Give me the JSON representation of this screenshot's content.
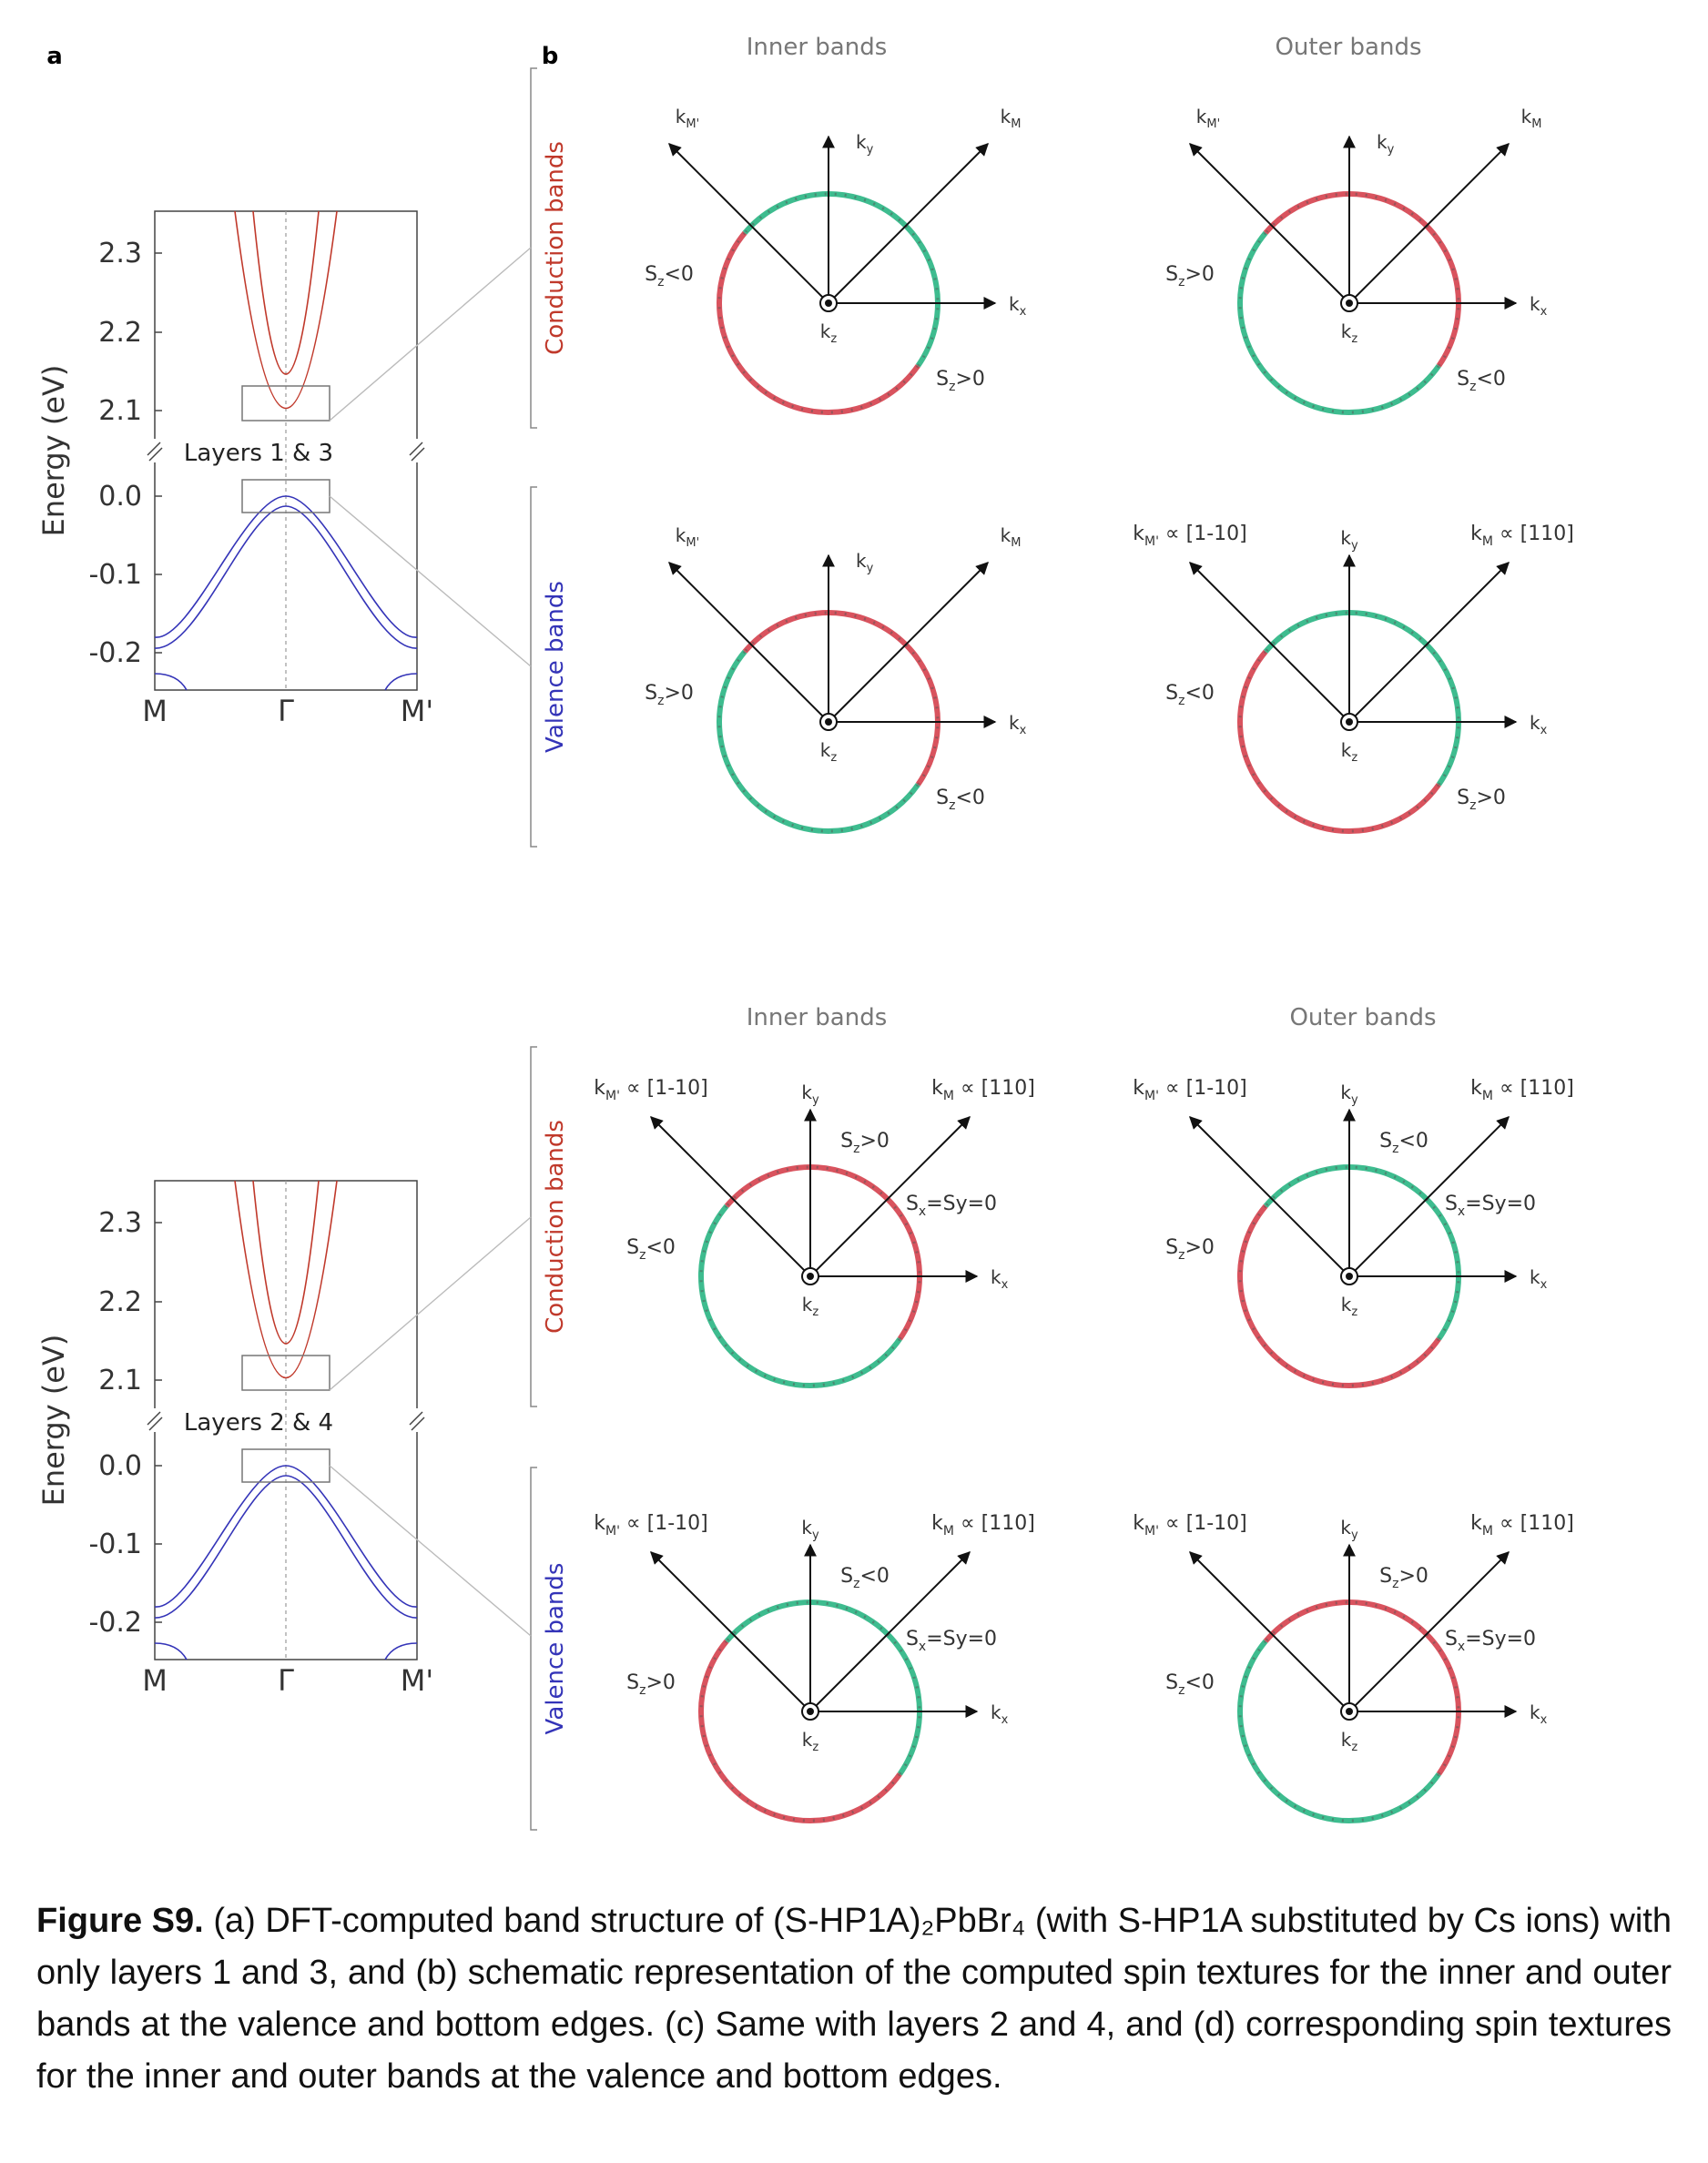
{
  "panel_labels": {
    "a": "a",
    "b": "b"
  },
  "column_headers": {
    "inner": "Inner bands",
    "outer": "Outer bands"
  },
  "row_labels": {
    "conduction": "Conduction bands",
    "valence": "Valence bands"
  },
  "band_plot": {
    "ylabel": "Energy (eV)",
    "upper_ticks": [
      "2.3",
      "2.2",
      "2.1"
    ],
    "lower_ticks": [
      "0.0",
      "-0.1",
      "-0.2"
    ],
    "x_ticks": [
      "M",
      "Γ",
      "M'"
    ]
  },
  "band_panels": [
    {
      "layers_label": "Layers 1 & 3"
    },
    {
      "layers_label": "Layers 2 & 4"
    }
  ],
  "axis_labels": {
    "ky": "ky",
    "kx": "kx",
    "kz": "kz",
    "kM": "kM",
    "kM_prime": "kM'",
    "kM_dir": "kM ∝ [110]",
    "kM_prime_dir": "kM' ∝ [1-10]"
  },
  "spin_diagrams": [
    {
      "set": 0,
      "col": "inner",
      "row": "conduction",
      "top": "green",
      "bottom": "red",
      "left_label": "Sz<0",
      "right_label": "Sz>0",
      "top_label": "",
      "diag_label": "",
      "directions": false
    },
    {
      "set": 0,
      "col": "outer",
      "row": "conduction",
      "top": "red",
      "bottom": "green",
      "left_label": "Sz>0",
      "right_label": "Sz<0",
      "top_label": "",
      "diag_label": "",
      "directions": false
    },
    {
      "set": 0,
      "col": "inner",
      "row": "valence",
      "top": "red",
      "bottom": "green",
      "left_label": "Sz>0",
      "right_label": "Sz<0",
      "top_label": "",
      "diag_label": "",
      "directions": false
    },
    {
      "set": 0,
      "col": "outer",
      "row": "valence",
      "top": "green",
      "bottom": "red",
      "left_label": "Sz<0",
      "right_label": "Sz>0",
      "top_label": "",
      "diag_label": "",
      "directions": true
    },
    {
      "set": 1,
      "col": "inner",
      "row": "conduction",
      "top": "red",
      "bottom": "green",
      "left_label": "Sz<0",
      "right_label": "",
      "top_label": "Sz>0",
      "diag_label": "Sx=Sy=0",
      "directions": true
    },
    {
      "set": 1,
      "col": "outer",
      "row": "conduction",
      "top": "green",
      "bottom": "red",
      "left_label": "Sz>0",
      "right_label": "",
      "top_label": "Sz<0",
      "diag_label": "Sx=Sy=0",
      "directions": true
    },
    {
      "set": 1,
      "col": "inner",
      "row": "valence",
      "top": "green",
      "bottom": "red",
      "left_label": "Sz>0",
      "right_label": "",
      "top_label": "Sz<0",
      "diag_label": "Sx=Sy=0",
      "directions": true
    },
    {
      "set": 1,
      "col": "outer",
      "row": "valence",
      "top": "red",
      "bottom": "green",
      "left_label": "Sz<0",
      "right_label": "",
      "top_label": "Sz>0",
      "diag_label": "Sx=Sy=0",
      "directions": true
    }
  ],
  "colors": {
    "red": "#d9535e",
    "green": "#3ebc8f",
    "conduction": "#c0392b",
    "valence": "#3434b8"
  },
  "caption": {
    "bold": "Figure S9.",
    "text": "(a) DFT-computed band structure of (S-HP1A)₂PbBr₄ (with S-HP1A substituted by Cs ions) with only layers 1 and 3, and (b) schematic representation of the computed spin textures for the inner and outer bands at the valence and bottom edges. (c) Same with layers 2 and 4, and (d) corresponding spin textures for the inner and outer bands at the valence and bottom edges."
  }
}
